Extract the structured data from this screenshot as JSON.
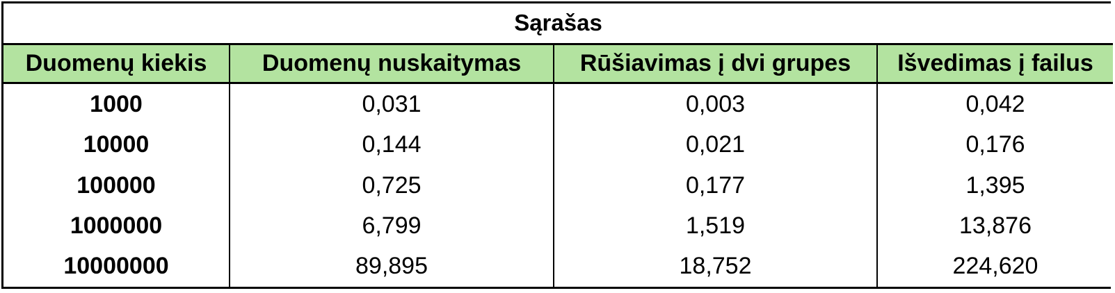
{
  "chart_data": {
    "type": "table",
    "title": "Sąrašas",
    "columns": [
      "Duomenų kiekis",
      "Duomenų nuskaitymas",
      "Rūšiavimas į dvi grupes",
      "Išvedimas į failus"
    ],
    "rows": [
      [
        "1000",
        "0,031",
        "0,003",
        "0,042"
      ],
      [
        "10000",
        "0,144",
        "0,021",
        "0,176"
      ],
      [
        "100000",
        "0,725",
        "0,177",
        "1,395"
      ],
      [
        "1000000",
        "6,799",
        "1,519",
        "13,876"
      ],
      [
        "10000000",
        "89,895",
        "18,752",
        "224,620"
      ]
    ],
    "header_color": "#b3e3a0",
    "border_color": "#000000"
  }
}
